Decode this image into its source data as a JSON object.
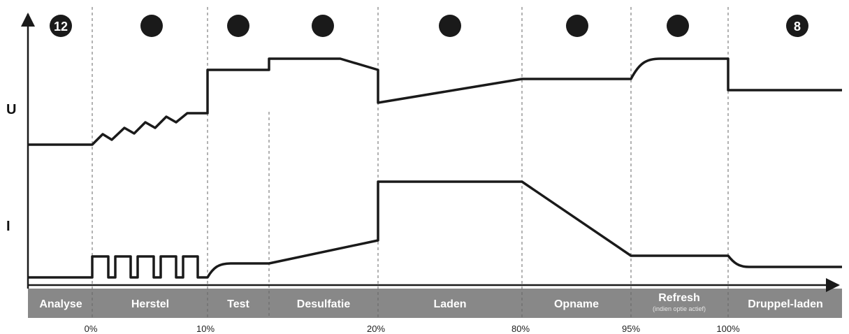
{
  "colors": {
    "band": "#888888",
    "line": "#1a1a1a",
    "marker": "#1a1a1a",
    "marker_text": "#ffffff",
    "divider": "#666666"
  },
  "axes": {
    "voltage_label": "U",
    "current_label": "I"
  },
  "markers": [
    "12",
    "",
    "",
    "",
    "",
    "",
    "",
    "8"
  ],
  "stages": [
    {
      "label": "Analyse",
      "sub": ""
    },
    {
      "label": "Herstel",
      "sub": ""
    },
    {
      "label": "Test",
      "sub": ""
    },
    {
      "label": "Desulfatie",
      "sub": ""
    },
    {
      "label": "Laden",
      "sub": ""
    },
    {
      "label": "Opname",
      "sub": ""
    },
    {
      "label": "Refresh",
      "sub": "(indien optie actief)"
    },
    {
      "label": "Druppel-laden",
      "sub": ""
    }
  ],
  "percent_ticks": [
    "0%",
    "10%",
    "20%",
    "80%",
    "95%",
    "100%"
  ]
}
